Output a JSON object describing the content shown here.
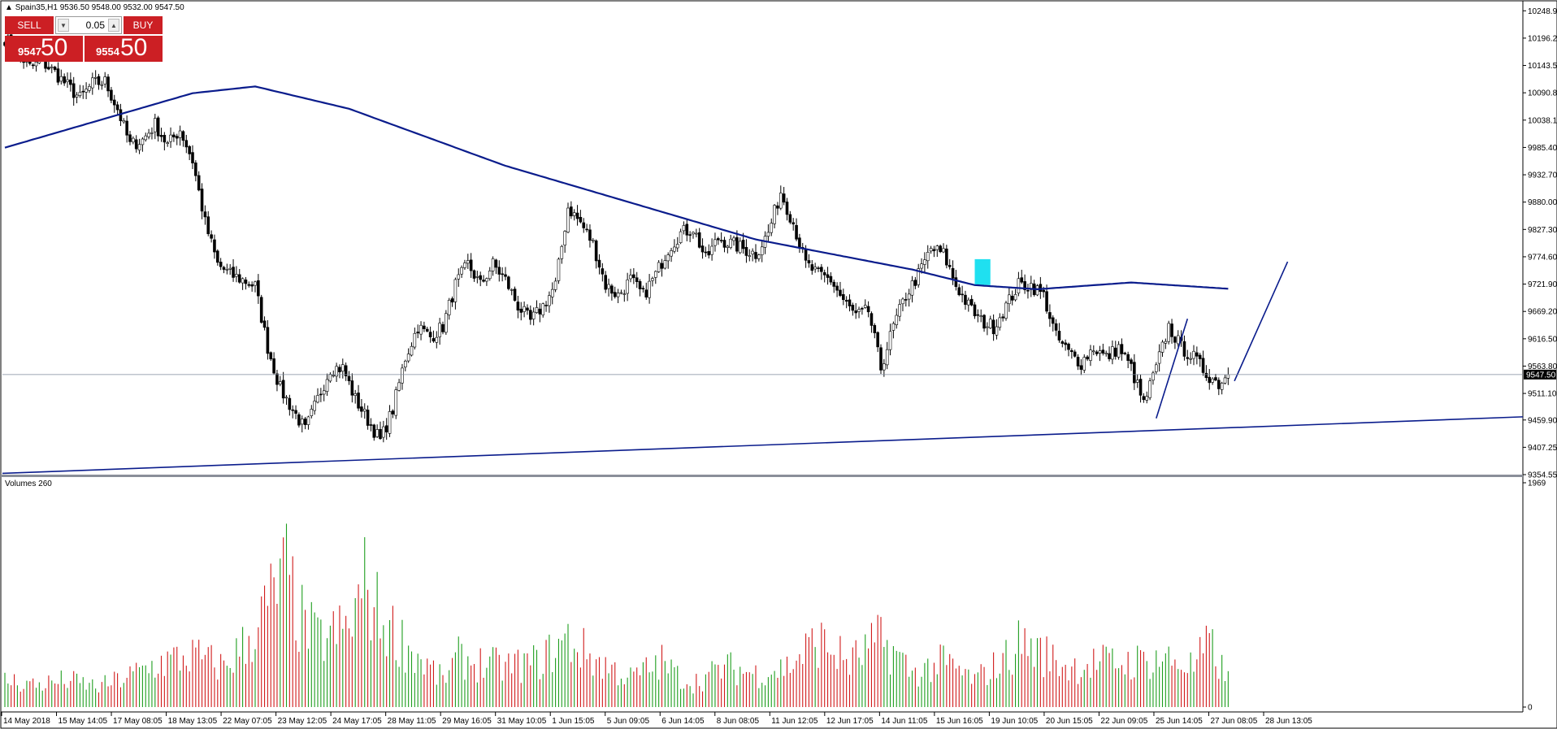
{
  "window": {
    "symbol_title": "Spain35,H1",
    "ohlc_text": "9536.50 9548.00 9532.00 9547.50",
    "volume_title": "Volumes 260"
  },
  "oneclick": {
    "sell_label": "SELL",
    "buy_label": "BUY",
    "lot_value": "0.05",
    "sell_price_small": "9547",
    "sell_price_big": "50",
    "buy_price_small": "9554",
    "buy_price_big": "50"
  },
  "colors": {
    "bull": "#1e9e1e",
    "bear": "#d11b1b",
    "indicator": "#0a1c8c",
    "highlight": "#1fe0f0",
    "price_line": "#7f8a9a",
    "trade_button": "#cc1f24"
  },
  "chart_data": {
    "type": "candlestick",
    "symbol": "Spain35",
    "timeframe": "H1",
    "current_price": "9547.50",
    "price_ticks": [
      "10248.90",
      "10196.20",
      "10143.50",
      "10090.80",
      "10038.10",
      "9985.40",
      "9932.70",
      "9880.00",
      "9827.30",
      "9774.60",
      "9721.90",
      "9669.20",
      "9616.50",
      "9563.80",
      "9511.10",
      "9459.90",
      "9407.25",
      "9354.55"
    ],
    "volume_ticks": [
      "1969",
      "0"
    ],
    "time_ticks": [
      "14 May 2018",
      "15 May 14:05",
      "17 May 08:05",
      "18 May 13:05",
      "22 May 07:05",
      "23 May 12:05",
      "24 May 17:05",
      "28 May 11:05",
      "29 May 16:05",
      "31 May 10:05",
      "1 Jun 15:05",
      "5 Jun 09:05",
      "6 Jun 14:05",
      "8 Jun 08:05",
      "11 Jun 12:05",
      "12 Jun 17:05",
      "14 Jun 11:05",
      "15 Jun 16:05",
      "19 Jun 10:05",
      "20 Jun 15:05",
      "22 Jun 09:05",
      "25 Jun 14:05",
      "27 Jun 08:05",
      "28 Jun 13:05"
    ],
    "price_anchors": [
      [
        0,
        10196
      ],
      [
        4,
        10168
      ],
      [
        8,
        10140
      ],
      [
        12,
        10150
      ],
      [
        16,
        10130
      ],
      [
        20,
        10104
      ],
      [
        24,
        10080
      ],
      [
        28,
        10108
      ],
      [
        32,
        10112
      ],
      [
        36,
        10060
      ],
      [
        40,
        9990
      ],
      [
        44,
        10000
      ],
      [
        48,
        10030
      ],
      [
        52,
        9990
      ],
      [
        56,
        10020
      ],
      [
        60,
        9960
      ],
      [
        64,
        9840
      ],
      [
        68,
        9760
      ],
      [
        72,
        9740
      ],
      [
        76,
        9730
      ],
      [
        80,
        9718
      ],
      [
        84,
        9600
      ],
      [
        88,
        9520
      ],
      [
        92,
        9480
      ],
      [
        96,
        9440
      ],
      [
        100,
        9500
      ],
      [
        104,
        9560
      ],
      [
        108,
        9560
      ],
      [
        112,
        9500
      ],
      [
        116,
        9460
      ],
      [
        120,
        9420
      ],
      [
        124,
        9480
      ],
      [
        128,
        9580
      ],
      [
        132,
        9640
      ],
      [
        136,
        9620
      ],
      [
        140,
        9640
      ],
      [
        144,
        9720
      ],
      [
        148,
        9760
      ],
      [
        152,
        9720
      ],
      [
        156,
        9760
      ],
      [
        160,
        9730
      ],
      [
        164,
        9680
      ],
      [
        168,
        9650
      ],
      [
        172,
        9680
      ],
      [
        176,
        9720
      ],
      [
        180,
        9870
      ],
      [
        184,
        9840
      ],
      [
        188,
        9800
      ],
      [
        192,
        9720
      ],
      [
        196,
        9700
      ],
      [
        200,
        9730
      ],
      [
        204,
        9700
      ],
      [
        208,
        9740
      ],
      [
        212,
        9790
      ],
      [
        216,
        9820
      ],
      [
        220,
        9830
      ],
      [
        224,
        9770
      ],
      [
        228,
        9810
      ],
      [
        232,
        9800
      ],
      [
        236,
        9790
      ],
      [
        240,
        9780
      ],
      [
        244,
        9820
      ],
      [
        248,
        9900
      ],
      [
        252,
        9840
      ],
      [
        256,
        9760
      ],
      [
        260,
        9740
      ],
      [
        264,
        9730
      ],
      [
        268,
        9690
      ],
      [
        272,
        9660
      ],
      [
        276,
        9670
      ],
      [
        280,
        9560
      ],
      [
        284,
        9640
      ],
      [
        288,
        9700
      ],
      [
        292,
        9740
      ],
      [
        296,
        9790
      ],
      [
        300,
        9780
      ],
      [
        304,
        9720
      ],
      [
        308,
        9680
      ],
      [
        312,
        9650
      ],
      [
        316,
        9640
      ],
      [
        320,
        9680
      ],
      [
        324,
        9720
      ],
      [
        328,
        9720
      ],
      [
        332,
        9700
      ],
      [
        336,
        9620
      ],
      [
        340,
        9590
      ],
      [
        344,
        9570
      ],
      [
        348,
        9600
      ],
      [
        352,
        9580
      ],
      [
        356,
        9600
      ],
      [
        360,
        9560
      ],
      [
        364,
        9490
      ],
      [
        368,
        9560
      ],
      [
        372,
        9640
      ],
      [
        376,
        9600
      ],
      [
        380,
        9580
      ],
      [
        384,
        9550
      ],
      [
        388,
        9530
      ],
      [
        391,
        9547.5
      ]
    ],
    "volume_anchors": [
      [
        0,
        0.12
      ],
      [
        10,
        0.1
      ],
      [
        20,
        0.12
      ],
      [
        30,
        0.09
      ],
      [
        40,
        0.14
      ],
      [
        50,
        0.2
      ],
      [
        60,
        0.23
      ],
      [
        70,
        0.18
      ],
      [
        78,
        0.3
      ],
      [
        84,
        0.45
      ],
      [
        90,
        0.6
      ],
      [
        94,
        0.4
      ],
      [
        100,
        0.3
      ],
      [
        110,
        0.35
      ],
      [
        115,
        0.55
      ],
      [
        120,
        0.4
      ],
      [
        130,
        0.25
      ],
      [
        140,
        0.12
      ],
      [
        145,
        0.22
      ],
      [
        150,
        0.2
      ],
      [
        160,
        0.18
      ],
      [
        170,
        0.2
      ],
      [
        180,
        0.3
      ],
      [
        190,
        0.2
      ],
      [
        200,
        0.13
      ],
      [
        210,
        0.2
      ],
      [
        215,
        0.14
      ],
      [
        220,
        0.11
      ],
      [
        225,
        0.14
      ],
      [
        230,
        0.18
      ],
      [
        240,
        0.15
      ],
      [
        250,
        0.18
      ],
      [
        260,
        0.3
      ],
      [
        270,
        0.2
      ],
      [
        280,
        0.3
      ],
      [
        286,
        0.22
      ],
      [
        290,
        0.15
      ],
      [
        300,
        0.2
      ],
      [
        310,
        0.12
      ],
      [
        320,
        0.22
      ],
      [
        325,
        0.3
      ],
      [
        330,
        0.25
      ],
      [
        340,
        0.18
      ],
      [
        350,
        0.2
      ],
      [
        360,
        0.2
      ],
      [
        370,
        0.22
      ],
      [
        380,
        0.18
      ],
      [
        385,
        0.28
      ],
      [
        391,
        0.12
      ]
    ],
    "moving_average": [
      [
        0,
        9985
      ],
      [
        60,
        10090
      ],
      [
        80,
        10103
      ],
      [
        110,
        10060
      ],
      [
        160,
        9950
      ],
      [
        240,
        9808
      ],
      [
        290,
        9750
      ],
      [
        310,
        9720
      ],
      [
        330,
        9712
      ],
      [
        360,
        9725
      ],
      [
        391,
        9713
      ]
    ],
    "trendline_points": [
      [
        "2018-05-14 00:05",
        9357
      ],
      [
        "end",
        9466
      ]
    ],
    "drawn_lines": [
      [
        [
          368,
          9463
        ],
        [
          378,
          9655
        ]
      ],
      [
        [
          393,
          9535
        ],
        [
          410,
          9765
        ]
      ]
    ],
    "highlight_box": [
      310,
      315,
      9720,
      9770
    ],
    "bars": 392,
    "price_range": [
      9354.55,
      10265
    ],
    "volume_range": [
      0,
      1969
    ],
    "grid": false
  }
}
